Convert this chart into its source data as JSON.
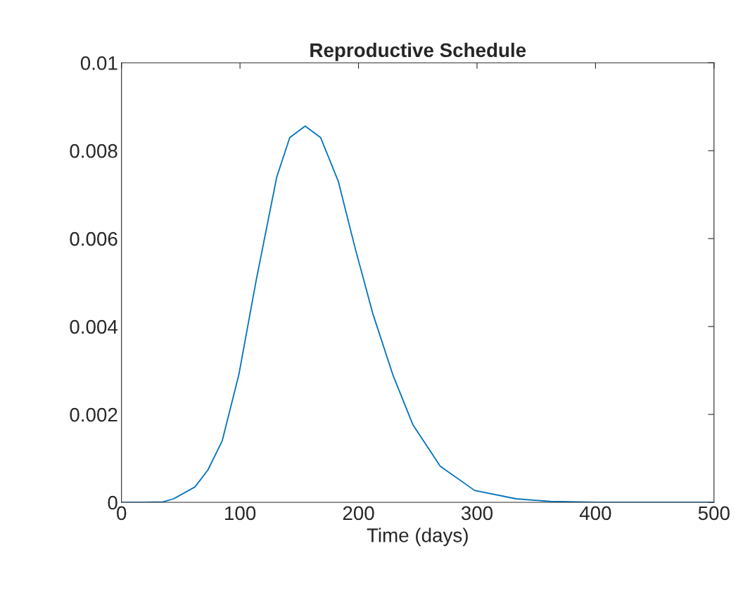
{
  "chart_data": {
    "type": "line",
    "title": "Reproductive Schedule",
    "xlabel": "Time (days)",
    "x": [
      0,
      20,
      35,
      44,
      62,
      73,
      85,
      99,
      114,
      131,
      142,
      155,
      168,
      183,
      197,
      212,
      229,
      246,
      269,
      298,
      333,
      362,
      400,
      450,
      500
    ],
    "series": [
      {
        "color": "#0072bd",
        "values": [
          0,
          0,
          1e-05,
          8e-05,
          0.00035,
          0.00074,
          0.0014,
          0.0029,
          0.0051,
          0.0074,
          0.0083,
          0.00856,
          0.0083,
          0.0073,
          0.0058,
          0.0043,
          0.0029,
          0.00176,
          0.00082,
          0.00027,
          8e-05,
          2e-05,
          0,
          0,
          0
        ]
      }
    ],
    "xlim": [
      0,
      500
    ],
    "xticks": [
      0,
      100,
      200,
      300,
      400,
      500
    ],
    "ylim": [
      0,
      0.01
    ],
    "yticks": [
      {
        "value": 0,
        "label": "0"
      },
      {
        "value": 0.002,
        "label": "0.002"
      },
      {
        "value": 0.004,
        "label": "0.004"
      },
      {
        "value": 0.006,
        "label": "0.006"
      },
      {
        "value": 0.008,
        "label": "0.008"
      },
      {
        "value": 0.01,
        "label": "0.01"
      }
    ],
    "grid": false,
    "legend": false,
    "marker": "none",
    "line_style": "solid"
  }
}
